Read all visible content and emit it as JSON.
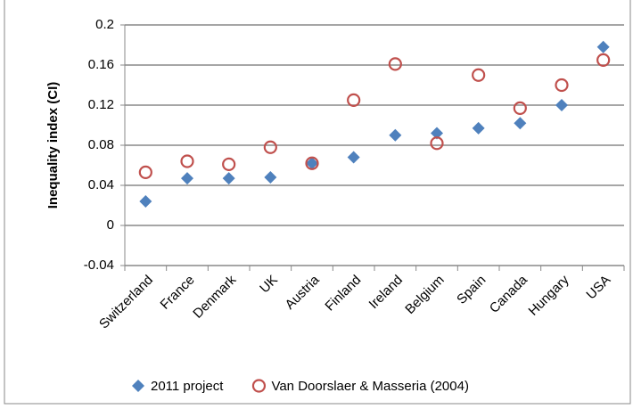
{
  "chart_data": {
    "type": "scatter",
    "y_label": "Inequality index (CI)",
    "categories": [
      "Switzerland",
      "France",
      "Denmark",
      "UK",
      "Austria",
      "Finland",
      "Ireland",
      "Belgium",
      "Spain",
      "Canada",
      "Hungary",
      "USA"
    ],
    "series": [
      {
        "name": "2011 project",
        "color": "#4f81bd",
        "marker": "diamond",
        "values": [
          0.024,
          0.047,
          0.047,
          0.048,
          0.062,
          0.068,
          0.09,
          0.092,
          0.097,
          0.102,
          0.12,
          0.178
        ]
      },
      {
        "name": "Van Doorslaer & Masseria (2004)",
        "color": "#c0504d",
        "marker": "circle",
        "values": [
          0.053,
          0.064,
          0.061,
          0.078,
          0.062,
          0.125,
          0.161,
          0.082,
          0.15,
          0.117,
          0.14,
          0.165
        ]
      }
    ],
    "ylim": [
      -0.04,
      0.2
    ],
    "yticks": [
      -0.04,
      0,
      0.04,
      0.08,
      0.12,
      0.16,
      0.2
    ],
    "grid": true,
    "legend": "bottom"
  }
}
